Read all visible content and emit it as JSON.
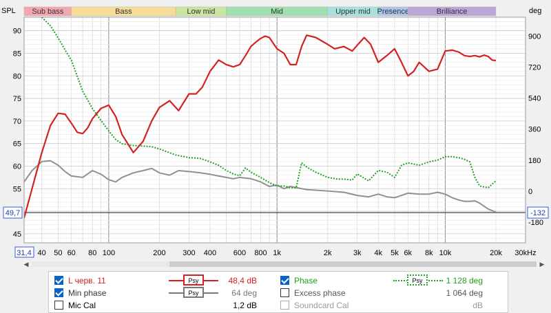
{
  "chart_data": {
    "type": "line",
    "x_scale": "log",
    "xlim": [
      31.4,
      30000
    ],
    "ylim_left": [
      43,
      93
    ],
    "ylim_right": [
      -300,
      1010
    ],
    "ylabel_left": "SPL",
    "ylabel_right": "deg",
    "x_ticks": [
      {
        "v": 31.4,
        "label": "31,4",
        "boxed": true
      },
      {
        "v": 40,
        "label": "40"
      },
      {
        "v": 50,
        "label": "50"
      },
      {
        "v": 60,
        "label": "60"
      },
      {
        "v": 80,
        "label": "80"
      },
      {
        "v": 100,
        "label": "100"
      },
      {
        "v": 200,
        "label": "200"
      },
      {
        "v": 300,
        "label": "300"
      },
      {
        "v": 400,
        "label": "400"
      },
      {
        "v": 600,
        "label": "600"
      },
      {
        "v": 800,
        "label": "800"
      },
      {
        "v": 1000,
        "label": "1k"
      },
      {
        "v": 2000,
        "label": "2k"
      },
      {
        "v": 3000,
        "label": "3k"
      },
      {
        "v": 4000,
        "label": "4k"
      },
      {
        "v": 5000,
        "label": "5k"
      },
      {
        "v": 6000,
        "label": "6k"
      },
      {
        "v": 8000,
        "label": "8k"
      },
      {
        "v": 10000,
        "label": "10k"
      },
      {
        "v": 20000,
        "label": "20k"
      },
      {
        "v": 30000,
        "label": "30kHz"
      }
    ],
    "y_ticks_left": [
      45,
      50,
      55,
      60,
      65,
      70,
      75,
      80,
      85,
      90
    ],
    "y_ticks_right": [
      -180,
      0,
      180,
      360,
      540,
      720,
      900
    ],
    "cursor": {
      "y_left": 49.7,
      "y_left_label": "49,7",
      "y_right": -132,
      "y_right_label": "-132"
    },
    "bands": [
      {
        "name": "Sub bass",
        "from": 31.4,
        "to": 60,
        "color": "#f4a6b0"
      },
      {
        "name": "Bass",
        "from": 60,
        "to": 250,
        "color": "#f7dc98"
      },
      {
        "name": "Low mid",
        "from": 250,
        "to": 500,
        "color": "#c8e6a0"
      },
      {
        "name": "Mid",
        "from": 500,
        "to": 2000,
        "color": "#9fe0ae"
      },
      {
        "name": "Upper mid",
        "from": 2000,
        "to": 4000,
        "color": "#a6e1dc"
      },
      {
        "name": "Presence",
        "from": 4000,
        "to": 6000,
        "color": "#a9c6ea"
      },
      {
        "name": "Brilliance",
        "from": 6000,
        "to": 20000,
        "color": "#bca6d8"
      }
    ],
    "series": [
      {
        "name": "L черв. 11",
        "axis": "left",
        "color": "#d42020",
        "dash": "",
        "x": [
          31.4,
          35,
          40,
          45,
          50,
          55,
          60,
          65,
          70,
          75,
          80,
          90,
          100,
          110,
          120,
          140,
          160,
          180,
          200,
          230,
          260,
          300,
          330,
          360,
          400,
          450,
          500,
          550,
          600,
          650,
          700,
          750,
          800,
          850,
          900,
          1000,
          1100,
          1200,
          1300,
          1400,
          1500,
          1700,
          2000,
          2200,
          2500,
          2800,
          3000,
          3300,
          3600,
          4000,
          4500,
          5000,
          5500,
          6000,
          6500,
          7000,
          8000,
          9000,
          10000,
          11000,
          12000,
          13000,
          14000,
          15000,
          16000,
          17000,
          18000,
          19000,
          20000
        ],
        "y": [
          48.5,
          55,
          63,
          69,
          71.7,
          71.5,
          69.5,
          67.5,
          67.2,
          68.5,
          70.5,
          72.8,
          73.5,
          71,
          67,
          63,
          65.5,
          70,
          73,
          74.5,
          72.3,
          76,
          76,
          77.5,
          81,
          83.5,
          82.5,
          82,
          82.5,
          84.5,
          86.5,
          87.5,
          88.3,
          88.8,
          88.5,
          86,
          85,
          82.5,
          82.5,
          86.5,
          89,
          88.5,
          87,
          86,
          86.5,
          85.5,
          86.8,
          88.5,
          87,
          83,
          84.5,
          86,
          83,
          80,
          81,
          83,
          81,
          81.5,
          85.5,
          85.7,
          85.3,
          84.5,
          84.3,
          84.5,
          84.2,
          84.6,
          84.3,
          83.5,
          83.4
        ]
      },
      {
        "name": "Min phase",
        "axis": "left",
        "color": "#909090",
        "dash": "",
        "x": [
          31.4,
          35,
          40,
          45,
          50,
          55,
          60,
          70,
          80,
          90,
          100,
          110,
          120,
          140,
          160,
          180,
          200,
          230,
          260,
          300,
          350,
          400,
          450,
          500,
          550,
          600,
          700,
          800,
          900,
          1000,
          1100,
          1200,
          1500,
          2000,
          2500,
          3000,
          3500,
          4000,
          4500,
          5000,
          5500,
          6000,
          7000,
          8000,
          9000,
          10000,
          11000,
          12000,
          13000,
          14000,
          15000,
          16000,
          18000,
          20000
        ],
        "y": [
          56.5,
          59,
          61,
          61.2,
          60.2,
          58.8,
          57.8,
          57.5,
          59,
          58.2,
          57,
          56.5,
          57.5,
          58.5,
          59,
          59.5,
          58.5,
          58,
          59,
          58.8,
          58.5,
          58.2,
          57.8,
          57.5,
          57.2,
          57.5,
          57.2,
          56.5,
          55.5,
          55.8,
          55,
          55.5,
          54.8,
          54.5,
          54.2,
          53.5,
          53.2,
          53.8,
          53.2,
          53,
          53.5,
          54,
          53.8,
          53.8,
          54.2,
          53.8,
          53,
          52.5,
          52.2,
          52.2,
          52.3,
          51.8,
          50.5,
          49.8
        ]
      },
      {
        "name": "Phase",
        "axis": "right",
        "color": "#20a020",
        "dash": "2,2",
        "x": [
          40,
          45,
          50,
          55,
          60,
          70,
          80,
          90,
          100,
          110,
          120,
          140,
          160,
          180,
          200,
          250,
          300,
          350,
          400,
          450,
          500,
          550,
          600,
          650,
          700,
          800,
          900,
          1000,
          1100,
          1200,
          1300,
          1400,
          1500,
          1700,
          2000,
          2300,
          2500,
          2800,
          3000,
          3500,
          4000,
          4500,
          5000,
          5500,
          6000,
          7000,
          8000,
          9000,
          10000,
          11000,
          12000,
          13000,
          14000,
          15000,
          16000,
          18000,
          20000
        ],
        "y": [
          1010,
          960,
          890,
          820,
          760,
          580,
          480,
          410,
          350,
          300,
          275,
          265,
          262,
          258,
          245,
          210,
          195,
          190,
          170,
          150,
          120,
          100,
          90,
          135,
          110,
          80,
          50,
          30,
          30,
          20,
          20,
          165,
          140,
          110,
          80,
          70,
          70,
          65,
          100,
          60,
          120,
          110,
          80,
          150,
          165,
          150,
          170,
          180,
          200,
          200,
          195,
          185,
          170,
          80,
          30,
          20,
          60
        ]
      }
    ]
  },
  "legend": {
    "rows": [
      [
        {
          "label": "L черв. 11",
          "checked": true,
          "value": "48,4 dB",
          "color": "#d42020",
          "icon": "Psy"
        },
        {
          "label": "Phase",
          "checked": true,
          "value": "1 128 deg",
          "color": "#20a020",
          "icon": "Psy"
        }
      ],
      [
        {
          "label": "Min phase",
          "checked": true,
          "value": "64 deg",
          "color": "#777777",
          "icon": "Psy"
        },
        {
          "label": "Excess phase",
          "checked": false,
          "value": "1 064 deg"
        }
      ],
      [
        {
          "label": "Mic Cal",
          "checked": false,
          "value": "1,2 dB"
        },
        {
          "label": "Soundcard Cal",
          "checked": false,
          "value": "dB",
          "disabled": true
        }
      ]
    ]
  }
}
